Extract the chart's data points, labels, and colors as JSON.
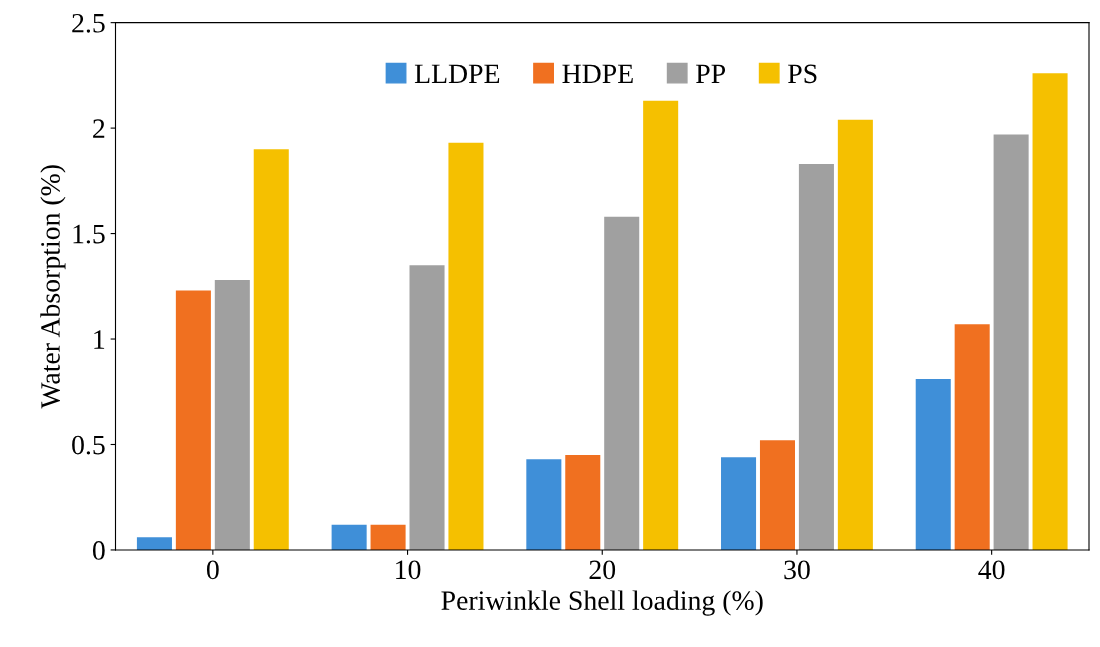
{
  "chart_data": {
    "type": "bar",
    "xlabel": "Periwinkle Shell loading (%)",
    "ylabel": "Water Absorption (%)",
    "categories": [
      "0",
      "10",
      "20",
      "30",
      "40"
    ],
    "series": [
      {
        "name": "LLDPE",
        "color": "#3f8fd8",
        "values": [
          0.06,
          0.12,
          0.43,
          0.44,
          0.81
        ]
      },
      {
        "name": "HDPE",
        "color": "#f07020",
        "values": [
          1.23,
          0.12,
          0.45,
          0.52,
          1.07
        ]
      },
      {
        "name": "PP",
        "color": "#a0a0a0",
        "values": [
          1.28,
          1.35,
          1.58,
          1.83,
          1.97
        ]
      },
      {
        "name": "PS",
        "color": "#f5c000",
        "values": [
          1.9,
          1.93,
          2.13,
          2.04,
          2.26
        ]
      }
    ],
    "ylim": [
      0,
      2.5
    ],
    "yticks": [
      0,
      0.5,
      1,
      1.5,
      2,
      2.5
    ],
    "grid": false,
    "legend": "top"
  }
}
